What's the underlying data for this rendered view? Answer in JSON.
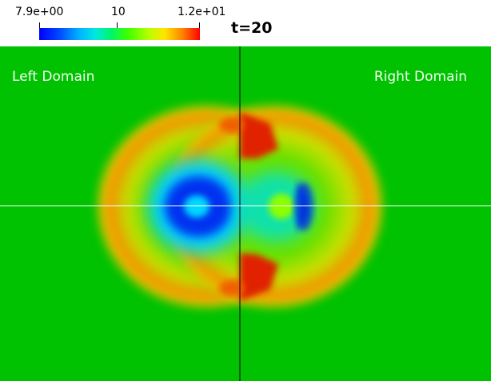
{
  "colorbar": {
    "min_label": "7.9e+00",
    "mid_label": "10",
    "max_label": "1.2e+01"
  },
  "time_label": "t=20",
  "domains": {
    "left_label": "Left Domain",
    "right_label": "Right Domain"
  },
  "colors": {
    "background_green": "#00c200",
    "ring_orange": "#f07a00",
    "ring_red": "#e02200",
    "core_blue": "#0028e0",
    "cyan": "#00d0ff",
    "axis_line_color": "#000000",
    "horizontal_line_color": "#ffffff"
  }
}
